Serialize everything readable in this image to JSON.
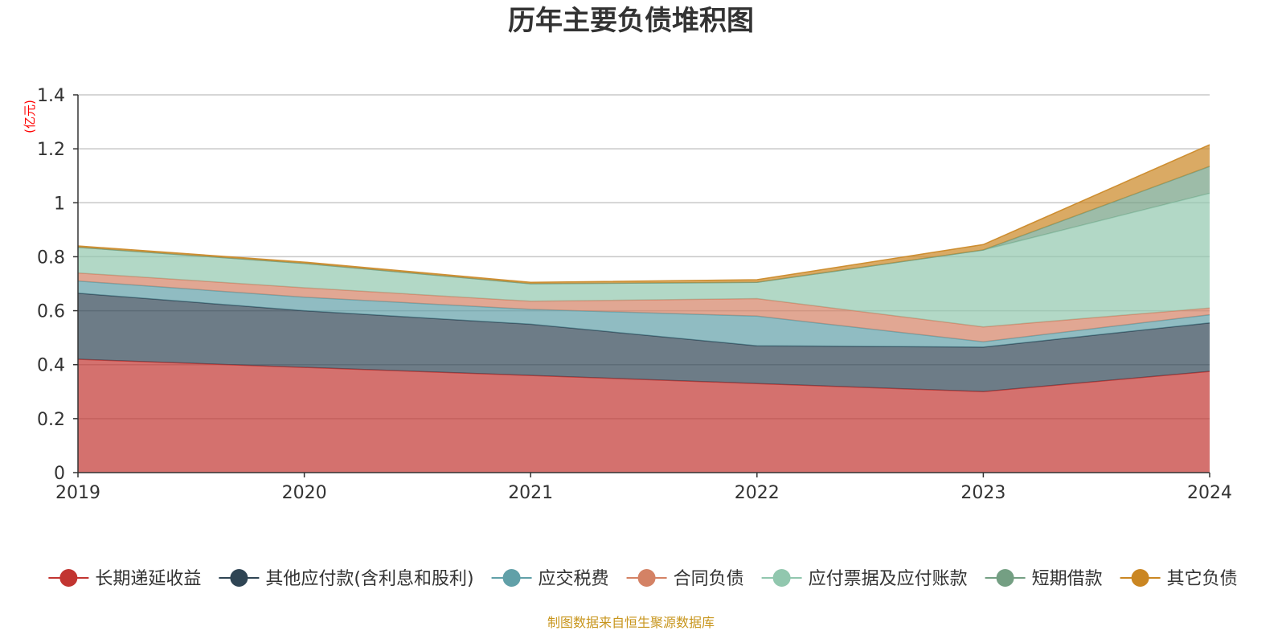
{
  "chart_data": {
    "type": "area",
    "title": "历年主要负债堆积图",
    "ylabel": "(亿元)",
    "xlabel": "",
    "categories": [
      "2019",
      "2020",
      "2021",
      "2022",
      "2023",
      "2024"
    ],
    "yticks": [
      "0",
      "0.2",
      "0.4",
      "0.6",
      "0.8",
      "1",
      "1.2",
      "1.4"
    ],
    "ylim": [
      0,
      1.4
    ],
    "stacked": true,
    "grid": true,
    "legend_position": "bottom",
    "series": [
      {
        "name": "长期递延收益",
        "color": "#c23531",
        "values": [
          0.42,
          0.39,
          0.36,
          0.33,
          0.3,
          0.375
        ]
      },
      {
        "name": "其他应付款(含利息和股利)",
        "color": "#2f4554",
        "values": [
          0.245,
          0.21,
          0.19,
          0.14,
          0.165,
          0.18
        ]
      },
      {
        "name": "应交税费",
        "color": "#61a0a8",
        "values": [
          0.045,
          0.05,
          0.055,
          0.11,
          0.02,
          0.03
        ]
      },
      {
        "name": "合同负债",
        "color": "#d48265",
        "values": [
          0.03,
          0.035,
          0.03,
          0.065,
          0.055,
          0.025
        ]
      },
      {
        "name": "应付票据及应付账款",
        "color": "#91c7ae",
        "values": [
          0.095,
          0.09,
          0.065,
          0.06,
          0.285,
          0.425
        ]
      },
      {
        "name": "短期借款",
        "color": "#749f83",
        "values": [
          0.0,
          0.0,
          0.0,
          0.0,
          0.0,
          0.1
        ]
      },
      {
        "name": "其它负债",
        "color": "#ca8622",
        "values": [
          0.005,
          0.005,
          0.005,
          0.01,
          0.02,
          0.08
        ]
      }
    ]
  },
  "source_text": "制图数据来自恒生聚源数据库",
  "colors": {
    "title": "#333333",
    "unit": "#ff0000",
    "source": "#c8961e",
    "grid": "#c8c8c8",
    "axis": "#333333"
  }
}
